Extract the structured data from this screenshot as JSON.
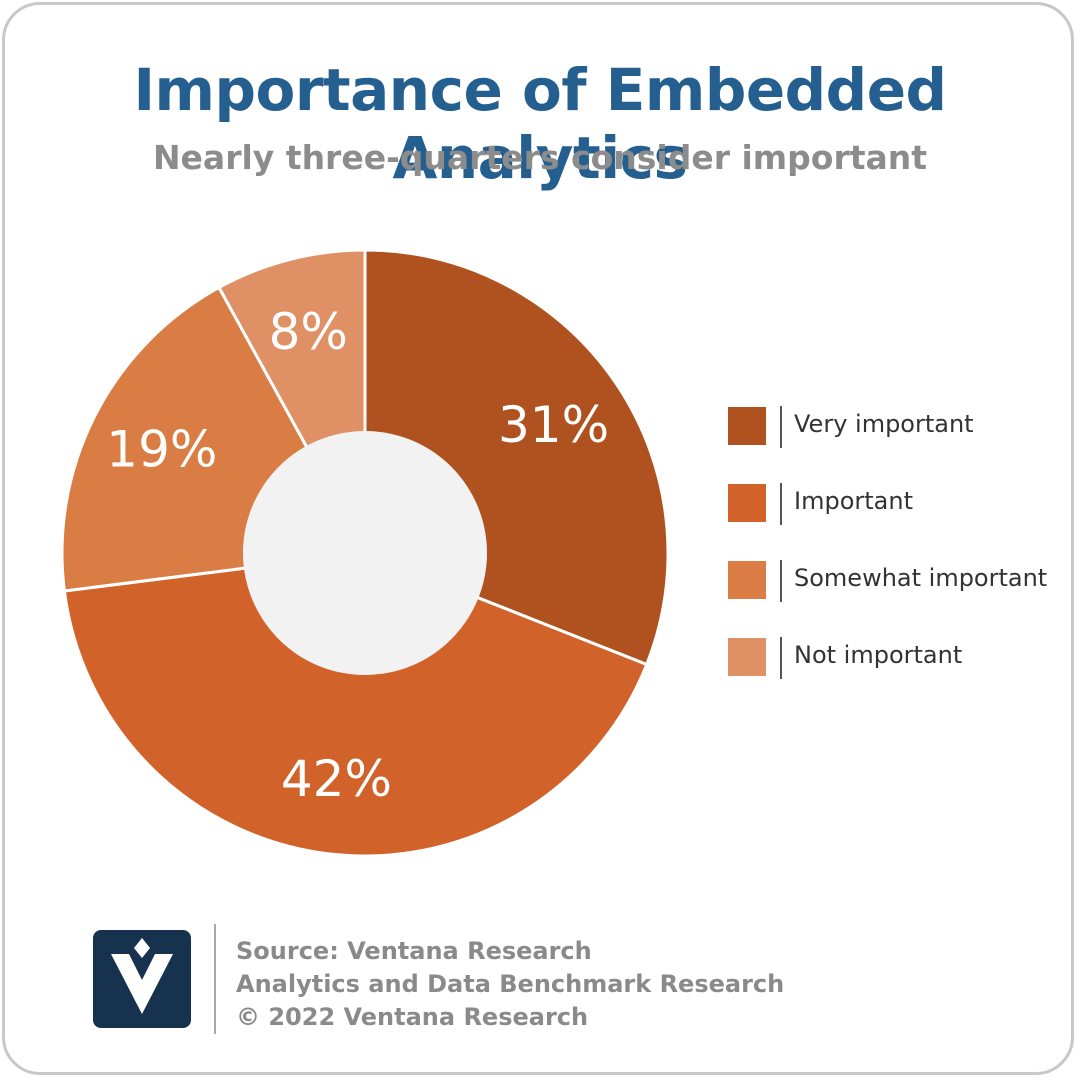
{
  "header": {
    "title": "Importance of Embedded Analytics",
    "subtitle": "Nearly three-quarters consider important"
  },
  "chart_data": {
    "type": "pie",
    "variant": "donut",
    "title": "Importance of Embedded Analytics",
    "subtitle": "Nearly three-quarters consider important",
    "unit": "%",
    "legend_position": "right",
    "slices": [
      {
        "name": "Very important",
        "value": 31,
        "label": "31%",
        "color": "#b0521f"
      },
      {
        "name": "Important",
        "value": 42,
        "label": "42%",
        "color": "#d1622a"
      },
      {
        "name": "Somewhat important",
        "value": 19,
        "label": "19%",
        "color": "#d97d45"
      },
      {
        "name": "Not important",
        "value": 8,
        "label": "8%",
        "color": "#df9065"
      }
    ],
    "hole_color": "#f2f2f2"
  },
  "footer": {
    "source": "Source: Ventana Research",
    "study": "Analytics and Data Benchmark Research",
    "copyright": "© 2022 Ventana Research"
  },
  "logo": {
    "icon": "ventana-v-logo-icon",
    "color": "#17324e"
  }
}
